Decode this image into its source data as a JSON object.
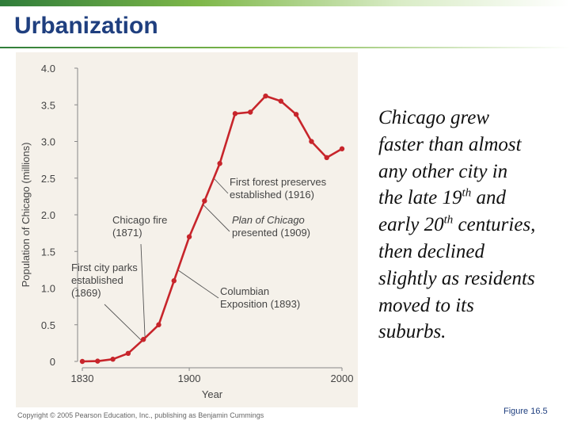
{
  "slide": {
    "title": "Urbanization",
    "caption": {
      "l1": "Chicago grew",
      "l2": "faster than almost",
      "l3": "any other city in",
      "l4a": "the late 19",
      "l4sup": "th",
      "l4b": " and",
      "l5a": "early 20",
      "l5sup": "th",
      "l5b": " centuries,",
      "l6": "then declined",
      "l7": "slightly as residents",
      "l8": "moved to its",
      "l9": "suburbs."
    },
    "copyright": "Copyright © 2005 Pearson Education, Inc., publishing as Benjamin Cummings",
    "figure_label": "Figure 16.5"
  },
  "colors": {
    "line": "#c7252b",
    "axis": "#888888",
    "panel": "#f5f1ea",
    "title": "#1f3f7f",
    "annotation": "#444444"
  },
  "chart_data": {
    "type": "line",
    "title": "",
    "xlabel": "Year",
    "ylabel": "Population of Chicago (millions)",
    "xlim": [
      1830,
      2000
    ],
    "ylim": [
      0,
      4.0
    ],
    "x_ticks": [
      1830,
      1900,
      2000
    ],
    "y_ticks": [
      "0",
      "0.5",
      "1.0",
      "1.5",
      "2.0",
      "2.5",
      "3.0",
      "3.5",
      "4.0"
    ],
    "series": [
      {
        "name": "Population of Chicago",
        "points": [
          {
            "x": 1830,
            "y": 0.0
          },
          {
            "x": 1840,
            "y": 0.004
          },
          {
            "x": 1850,
            "y": 0.03
          },
          {
            "x": 1860,
            "y": 0.11
          },
          {
            "x": 1870,
            "y": 0.3
          },
          {
            "x": 1880,
            "y": 0.5
          },
          {
            "x": 1890,
            "y": 1.1
          },
          {
            "x": 1900,
            "y": 1.7
          },
          {
            "x": 1910,
            "y": 2.19
          },
          {
            "x": 1920,
            "y": 2.7
          },
          {
            "x": 1930,
            "y": 3.38
          },
          {
            "x": 1940,
            "y": 3.4
          },
          {
            "x": 1950,
            "y": 3.62
          },
          {
            "x": 1960,
            "y": 3.55
          },
          {
            "x": 1970,
            "y": 3.37
          },
          {
            "x": 1980,
            "y": 3.0
          },
          {
            "x": 1990,
            "y": 2.78
          },
          {
            "x": 2000,
            "y": 2.9
          }
        ]
      }
    ],
    "annotations": [
      {
        "lines": [
          "First city parks",
          "established",
          "(1869)"
        ],
        "point": {
          "x": 1869,
          "y": 0.28
        }
      },
      {
        "lines": [
          "Chicago fire",
          "(1871)"
        ],
        "point": {
          "x": 1871,
          "y": 0.33
        }
      },
      {
        "lines": [
          "Columbian",
          "Exposition (1893)"
        ],
        "point": {
          "x": 1893,
          "y": 1.24
        }
      },
      {
        "lines": [
          "Plan of Chicago",
          "presented (1909)"
        ],
        "point": {
          "x": 1909,
          "y": 2.14
        },
        "italic_words": "Plan of Chicago"
      },
      {
        "lines": [
          "First forest preserves",
          "established (1916)"
        ],
        "point": {
          "x": 1916,
          "y": 2.5
        }
      }
    ]
  }
}
